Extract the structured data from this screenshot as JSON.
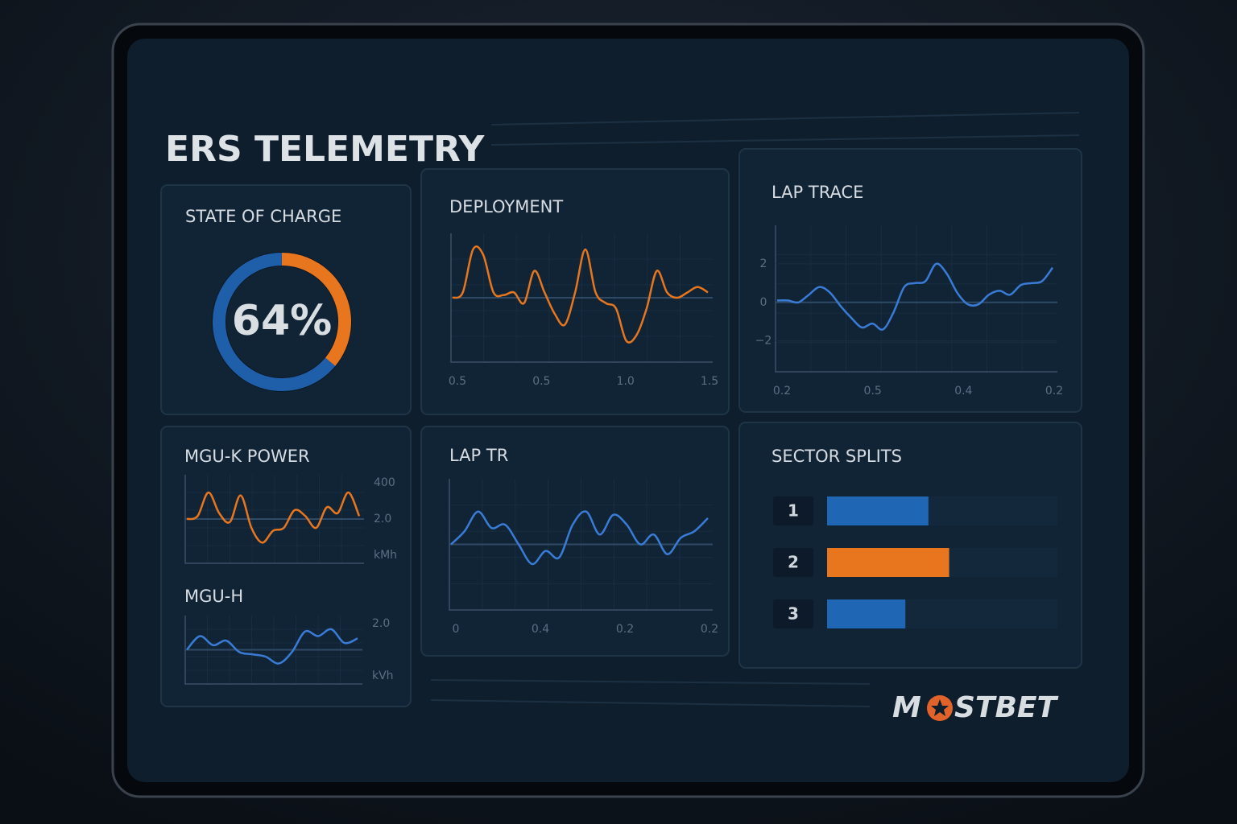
{
  "title": "ERS TELEMETRY",
  "state_of_charge": {
    "title": "STATE OF CHARGE",
    "type": "gauge",
    "value": 64,
    "value_label": "64%",
    "color": "#1f5ea8",
    "rest_color": "#e8761e"
  },
  "deployment": {
    "title": "DEPLOYMENT",
    "type": "line",
    "color": "#e8761e",
    "values": [
      0,
      0.1,
      0.9,
      0.8,
      0.1,
      0.05,
      0.1,
      -0.1,
      0.5,
      0.1,
      -0.3,
      -0.5,
      0.1,
      0.9,
      0.1,
      -0.1,
      -0.2,
      -0.8,
      -0.7,
      -0.2,
      0.5,
      0.1,
      0,
      0.1,
      0.2,
      0.1
    ],
    "ylim": [
      -1.2,
      1.2
    ],
    "x_tick_labels": [
      "0.5",
      "0.5",
      "1.0",
      "1.5"
    ]
  },
  "lap_trace": {
    "title": "LAP TRACE",
    "type": "line",
    "color": "#3a7bd5",
    "values": [
      0.1,
      0.1,
      0,
      0.4,
      0.8,
      0.5,
      -0.2,
      -0.8,
      -1.3,
      -1.1,
      -1.4,
      -0.5,
      0.8,
      1.0,
      1.1,
      2.0,
      1.5,
      0.5,
      -0.1,
      -0.1,
      0.4,
      0.6,
      0.4,
      0.9,
      1.0,
      1.1,
      1.8
    ],
    "ylim": [
      -3.6,
      4
    ],
    "yticks": [
      2,
      0,
      {
        "value": -2,
        "label": "−2"
      }
    ],
    "x_tick_labels": [
      "0.2",
      "0.5",
      "0.4",
      "0.2"
    ]
  },
  "mgu_k": {
    "title": "MGU-K POWER",
    "type": "line",
    "color": "#e8761e",
    "values": [
      0,
      0.1,
      0.9,
      0.2,
      -0.1,
      0.8,
      -0.3,
      -0.8,
      -0.4,
      -0.3,
      0.3,
      0.1,
      -0.3,
      0.4,
      0.2,
      0.9,
      0.1
    ],
    "ylim": [
      -1.5,
      1.5
    ],
    "side_labels": [
      "400",
      "2.0",
      "kMh"
    ]
  },
  "mgu_h": {
    "title": "MGU-H",
    "type": "line",
    "color": "#3a7bd5",
    "values": [
      0,
      0.6,
      0.2,
      0.4,
      -0.1,
      -0.2,
      -0.3,
      -0.6,
      -0.1,
      0.8,
      0.6,
      0.9,
      0.3,
      0.5
    ],
    "ylim": [
      -1.5,
      1.5
    ],
    "side_labels": [
      "2.0",
      "kVh"
    ]
  },
  "lap_tr": {
    "title": "LAP TR",
    "type": "line",
    "color": "#3a7bd5",
    "values": [
      0,
      0.4,
      1.0,
      0.5,
      0.6,
      0,
      -0.6,
      -0.2,
      -0.4,
      0.6,
      1.0,
      0.3,
      0.9,
      0.6,
      0,
      0.3,
      -0.3,
      0.2,
      0.4,
      0.8
    ],
    "ylim": [
      -2,
      2
    ],
    "x_tick_labels": [
      "0",
      "0.4",
      "0.2",
      "0.2"
    ]
  },
  "sector_splits": {
    "title": "SECTOR SPLITS",
    "type": "bar",
    "categories": [
      "1",
      "2",
      "3"
    ],
    "values": [
      44,
      53,
      34
    ],
    "colors": [
      "#1f66b5",
      "#e8761e",
      "#1f66b5"
    ],
    "xlim": [
      0,
      100
    ]
  },
  "logo": {
    "left": "M",
    "right": "STBET"
  }
}
